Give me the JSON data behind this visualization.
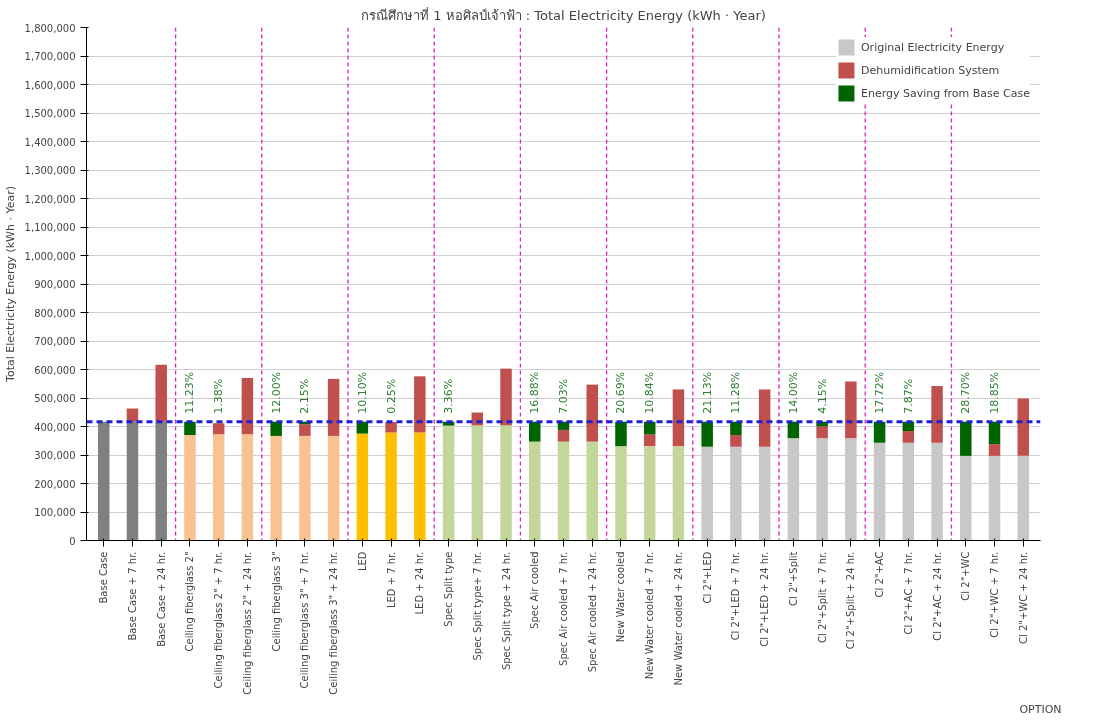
{
  "chart_data": {
    "type": "bar",
    "stacked": true,
    "title": "กรณีศึกษาที่ 1 หอศิลป์เจ้าฟ้า : Total Electricity Energy (kWh · Year)",
    "xlabel": "OPTION",
    "ylabel": "Total Electricity Energy (kWh · Year)",
    "categories": [
      "Base Case",
      "Base Case + 7 hr.",
      "Base Case + 24 hr.",
      "Ceiling fiberglass 2\"",
      "Ceiling fiberglass 2\" + 7 hr.",
      "Ceiling fiberglass 2\" + 24 hr.",
      "Ceiling fiberglass 3\"",
      "Ceiling fiberglass 3\" + 7 hr.",
      "Ceiling fiberglass 3\" + 24 hr.",
      "LED",
      "LED + 7 hr.",
      "LED + 24 hr.",
      "Spec Split type",
      "Spec Split type+ 7 hr.",
      "Spec Split type + 24 hr.",
      "Spec Air cooled",
      "Spec Air cooled + 7 hr.",
      "Spec Air cooled + 24 hr.",
      "New Water cooled",
      "New Water cooled + 7 hr.",
      "New Water cooled + 24 hr.",
      "Cl 2\"+LED",
      "Cl 2\"+LED + 7 hr.",
      "Cl 2\"+LED + 24 hr.",
      "Cl 2\"+Split",
      "Cl 2\"+Split + 7 hr.",
      "Cl 2\"+Split + 24 hr.",
      "Cl 2\"+AC",
      "Cl 2\"+AC + 7 hr.",
      "Cl 2\"+AC + 24 hr.",
      "Cl 2\"+WC",
      "Cl 2\"+WC + 7 hr.",
      "Cl 2\"+WC + 24 hr."
    ],
    "series": [
      {
        "name": "Original Electricity Energy",
        "color": "#c8c8c8",
        "colors": [
          "#808080",
          "#808080",
          "#808080",
          "#f8c391",
          "#f8c391",
          "#f8c391",
          "#f8c391",
          "#f8c391",
          "#f8c391",
          "#ffc000",
          "#ffc000",
          "#ffc000",
          "#c4d79b",
          "#c4d79b",
          "#c4d79b",
          "#c4d79b",
          "#c4d79b",
          "#c4d79b",
          "#c4d79b",
          "#c4d79b",
          "#c4d79b",
          "#c8c8c8",
          "#c8c8c8",
          "#c8c8c8",
          "#c8c8c8",
          "#c8c8c8",
          "#c8c8c8",
          "#c8c8c8",
          "#c8c8c8",
          "#c8c8c8",
          "#c8c8c8",
          "#c8c8c8",
          "#c8c8c8"
        ],
        "values": [
          417000,
          417000,
          417000,
          370000,
          373000,
          373000,
          367000,
          367000,
          367000,
          375000,
          379000,
          379000,
          403000,
          404000,
          404000,
          347000,
          347000,
          347000,
          331000,
          331000,
          331000,
          329000,
          329000,
          329000,
          359000,
          359000,
          359000,
          343000,
          343000,
          343000,
          297000,
          297000,
          297000
        ]
      },
      {
        "name": "Dehumidification System",
        "color": "#c0504d",
        "values": [
          0,
          46000,
          200000,
          0,
          38000,
          197000,
          0,
          41000,
          200000,
          0,
          37000,
          197000,
          0,
          45000,
          199000,
          0,
          41000,
          200000,
          0,
          41000,
          199000,
          0,
          41000,
          201000,
          0,
          41000,
          199000,
          0,
          41000,
          199000,
          0,
          41000,
          201000
        ]
      },
      {
        "name": "Energy Saving from Base Case",
        "color": "#006400",
        "values": [
          0,
          0,
          0,
          47000,
          null,
          0,
          50000,
          9000,
          0,
          42000,
          null,
          0,
          14000,
          0,
          0,
          70000,
          29000,
          0,
          86000,
          45000,
          0,
          88000,
          47000,
          0,
          58000,
          17000,
          0,
          74000,
          33000,
          0,
          120000,
          79000,
          0
        ]
      }
    ],
    "annotations": [
      {
        "text": "11.23%",
        "x": "Ceiling fiberglass 2\"",
        "y": 417000
      },
      {
        "text": "1.38%",
        "x": "Ceiling fiberglass 2\" + 7 hr.",
        "y": 417000
      },
      {
        "text": "12.00%",
        "x": "Ceiling fiberglass 3\"",
        "y": 417000
      },
      {
        "text": "2.15%",
        "x": "Ceiling fiberglass 3\" + 7 hr.",
        "y": 417000
      },
      {
        "text": "10.10%",
        "x": "LED",
        "y": 417000
      },
      {
        "text": "0.25%",
        "x": "LED + 7 hr.",
        "y": 417000
      },
      {
        "text": "3.36%",
        "x": "Spec Split type",
        "y": 417000
      },
      {
        "text": "16.88%",
        "x": "Spec Air cooled",
        "y": 417000
      },
      {
        "text": "7.03%",
        "x": "Spec Air cooled + 7 hr.",
        "y": 417000
      },
      {
        "text": "20.69%",
        "x": "New Water cooled",
        "y": 417000
      },
      {
        "text": "10.84%",
        "x": "New Water cooled + 7 hr.",
        "y": 417000
      },
      {
        "text": "21.13%",
        "x": "Cl 2\"+LED",
        "y": 417000
      },
      {
        "text": "11.28%",
        "x": "Cl 2\"+LED + 7 hr.",
        "y": 417000
      },
      {
        "text": "14.00%",
        "x": "Cl 2\"+Split",
        "y": 417000
      },
      {
        "text": "4.15%",
        "x": "Cl 2\"+Split + 7 hr.",
        "y": 417000
      },
      {
        "text": "17.72%",
        "x": "Cl 2\"+AC",
        "y": 417000
      },
      {
        "text": "7.87%",
        "x": "Cl 2\"+AC + 7 hr.",
        "y": 417000
      },
      {
        "text": "28.70%",
        "x": "Cl 2\"+WC",
        "y": 417000
      },
      {
        "text": "18.85%",
        "x": "Cl 2\"+WC + 7 hr.",
        "y": 417000
      }
    ],
    "ylim": [
      0,
      1800000
    ],
    "yticks": [
      {
        "value": 0,
        "label": "0"
      },
      {
        "value": 100000,
        "label": "100,000"
      },
      {
        "value": 200000,
        "label": "200,000"
      },
      {
        "value": 300000,
        "label": "300,000"
      },
      {
        "value": 400000,
        "label": "400,000"
      },
      {
        "value": 500000,
        "label": "500,000"
      },
      {
        "value": 600000,
        "label": "600,000"
      },
      {
        "value": 700000,
        "label": "700,000"
      },
      {
        "value": 800000,
        "label": "800,000"
      },
      {
        "value": 900000,
        "label": "900,000"
      },
      {
        "value": 1000000,
        "label": "1,000,000"
      },
      {
        "value": 1100000,
        "label": "1,100,000"
      },
      {
        "value": 1200000,
        "label": "1,200,000"
      },
      {
        "value": 1300000,
        "label": "1,300,000"
      },
      {
        "value": 1400000,
        "label": "1,400,000"
      },
      {
        "value": 1500000,
        "label": "1,500,000"
      },
      {
        "value": 1600000,
        "label": "1,600,000"
      },
      {
        "value": 1700000,
        "label": "1,700,000"
      },
      {
        "value": 1800000,
        "label": "1,800,000"
      }
    ],
    "ref_lines": [
      {
        "axis": "y",
        "value": 417000,
        "color": "#1f1fd6",
        "line_style": "dashed"
      }
    ],
    "grid": "y",
    "legend": "top right"
  }
}
